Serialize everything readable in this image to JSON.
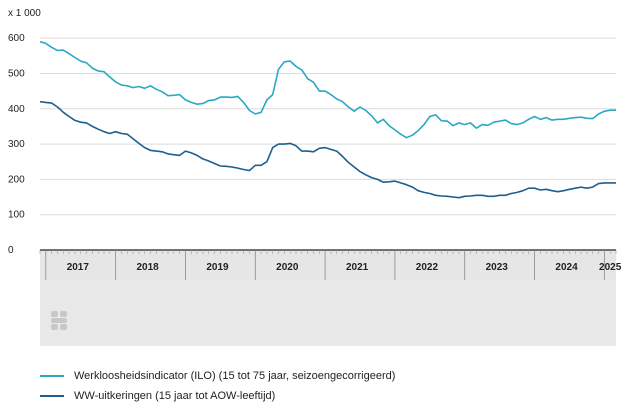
{
  "chart_data": {
    "type": "line",
    "unit_label": "x 1 000",
    "y_ticks": [
      0,
      100,
      200,
      300,
      400,
      500,
      600
    ],
    "ylim": [
      0,
      640
    ],
    "x_years": [
      "2017",
      "2018",
      "2019",
      "2020",
      "2021",
      "2022",
      "2023",
      "2024",
      "2025"
    ],
    "x_start": "2016-12",
    "x_end": "2025-03",
    "grid": "horizontal",
    "legend_position": "bottom",
    "series": [
      {
        "name": "Werkloosheidsindicator (ILO) (15 tot 75 jaar, seizoengecorrigeerd)",
        "color": "#2aa8c4",
        "points": [
          [
            "2016-12",
            590
          ],
          [
            "2017-01",
            585
          ],
          [
            "2017-02",
            574
          ],
          [
            "2017-03",
            565
          ],
          [
            "2017-04",
            566
          ],
          [
            "2017-05",
            556
          ],
          [
            "2017-06",
            545
          ],
          [
            "2017-07",
            535
          ],
          [
            "2017-08",
            530
          ],
          [
            "2017-09",
            515
          ],
          [
            "2017-10",
            507
          ],
          [
            "2017-11",
            505
          ],
          [
            "2017-12",
            490
          ],
          [
            "2018-01",
            476
          ],
          [
            "2018-02",
            467
          ],
          [
            "2018-03",
            465
          ],
          [
            "2018-04",
            460
          ],
          [
            "2018-05",
            463
          ],
          [
            "2018-06",
            458
          ],
          [
            "2018-07",
            465
          ],
          [
            "2018-08",
            455
          ],
          [
            "2018-09",
            448
          ],
          [
            "2018-10",
            437
          ],
          [
            "2018-11",
            438
          ],
          [
            "2018-12",
            440
          ],
          [
            "2019-01",
            425
          ],
          [
            "2019-02",
            418
          ],
          [
            "2019-03",
            413
          ],
          [
            "2019-04",
            415
          ],
          [
            "2019-05",
            423
          ],
          [
            "2019-06",
            425
          ],
          [
            "2019-07",
            433
          ],
          [
            "2019-08",
            433
          ],
          [
            "2019-09",
            432
          ],
          [
            "2019-10",
            435
          ],
          [
            "2019-11",
            418
          ],
          [
            "2019-12",
            395
          ],
          [
            "2020-01",
            385
          ],
          [
            "2020-02",
            390
          ],
          [
            "2020-03",
            425
          ],
          [
            "2020-04",
            440
          ],
          [
            "2020-05",
            512
          ],
          [
            "2020-06",
            533
          ],
          [
            "2020-07",
            535
          ],
          [
            "2020-08",
            520
          ],
          [
            "2020-09",
            510
          ],
          [
            "2020-10",
            485
          ],
          [
            "2020-11",
            475
          ],
          [
            "2020-12",
            450
          ],
          [
            "2021-01",
            450
          ],
          [
            "2021-02",
            440
          ],
          [
            "2021-03",
            428
          ],
          [
            "2021-04",
            420
          ],
          [
            "2021-05",
            405
          ],
          [
            "2021-06",
            393
          ],
          [
            "2021-07",
            405
          ],
          [
            "2021-08",
            395
          ],
          [
            "2021-09",
            380
          ],
          [
            "2021-10",
            360
          ],
          [
            "2021-11",
            370
          ],
          [
            "2021-12",
            352
          ],
          [
            "2022-01",
            340
          ],
          [
            "2022-02",
            328
          ],
          [
            "2022-03",
            318
          ],
          [
            "2022-04",
            325
          ],
          [
            "2022-05",
            338
          ],
          [
            "2022-06",
            355
          ],
          [
            "2022-07",
            378
          ],
          [
            "2022-08",
            383
          ],
          [
            "2022-09",
            366
          ],
          [
            "2022-10",
            365
          ],
          [
            "2022-11",
            352
          ],
          [
            "2022-12",
            360
          ],
          [
            "2023-01",
            355
          ],
          [
            "2023-02",
            360
          ],
          [
            "2023-03",
            345
          ],
          [
            "2023-04",
            355
          ],
          [
            "2023-05",
            353
          ],
          [
            "2023-06",
            362
          ],
          [
            "2023-07",
            365
          ],
          [
            "2023-08",
            368
          ],
          [
            "2023-09",
            358
          ],
          [
            "2023-10",
            355
          ],
          [
            "2023-11",
            360
          ],
          [
            "2023-12",
            370
          ],
          [
            "2024-01",
            378
          ],
          [
            "2024-02",
            370
          ],
          [
            "2024-03",
            375
          ],
          [
            "2024-04",
            368
          ],
          [
            "2024-05",
            370
          ],
          [
            "2024-06",
            370
          ],
          [
            "2024-07",
            373
          ],
          [
            "2024-08",
            375
          ],
          [
            "2024-09",
            376
          ],
          [
            "2024-10",
            373
          ],
          [
            "2024-11",
            372
          ],
          [
            "2024-12",
            385
          ],
          [
            "2025-01",
            393
          ],
          [
            "2025-02",
            396
          ],
          [
            "2025-03",
            396
          ]
        ]
      },
      {
        "name": "WW-uitkeringen (15 jaar tot AOW-leeftijd)",
        "color": "#1d5f91",
        "points": [
          [
            "2016-12",
            420
          ],
          [
            "2017-01",
            418
          ],
          [
            "2017-02",
            416
          ],
          [
            "2017-03",
            405
          ],
          [
            "2017-04",
            390
          ],
          [
            "2017-05",
            378
          ],
          [
            "2017-06",
            367
          ],
          [
            "2017-07",
            362
          ],
          [
            "2017-08",
            360
          ],
          [
            "2017-09",
            350
          ],
          [
            "2017-10",
            342
          ],
          [
            "2017-11",
            335
          ],
          [
            "2017-12",
            330
          ],
          [
            "2018-01",
            335
          ],
          [
            "2018-02",
            330
          ],
          [
            "2018-03",
            328
          ],
          [
            "2018-04",
            315
          ],
          [
            "2018-05",
            302
          ],
          [
            "2018-06",
            290
          ],
          [
            "2018-07",
            282
          ],
          [
            "2018-08",
            280
          ],
          [
            "2018-09",
            278
          ],
          [
            "2018-10",
            272
          ],
          [
            "2018-11",
            270
          ],
          [
            "2018-12",
            268
          ],
          [
            "2019-01",
            280
          ],
          [
            "2019-02",
            275
          ],
          [
            "2019-03",
            268
          ],
          [
            "2019-04",
            258
          ],
          [
            "2019-05",
            252
          ],
          [
            "2019-06",
            245
          ],
          [
            "2019-07",
            238
          ],
          [
            "2019-08",
            237
          ],
          [
            "2019-09",
            235
          ],
          [
            "2019-10",
            232
          ],
          [
            "2019-11",
            228
          ],
          [
            "2019-12",
            225
          ],
          [
            "2020-01",
            240
          ],
          [
            "2020-02",
            240
          ],
          [
            "2020-03",
            250
          ],
          [
            "2020-04",
            290
          ],
          [
            "2020-05",
            300
          ],
          [
            "2020-06",
            300
          ],
          [
            "2020-07",
            302
          ],
          [
            "2020-08",
            295
          ],
          [
            "2020-09",
            280
          ],
          [
            "2020-10",
            280
          ],
          [
            "2020-11",
            278
          ],
          [
            "2020-12",
            288
          ],
          [
            "2021-01",
            290
          ],
          [
            "2021-02",
            285
          ],
          [
            "2021-03",
            280
          ],
          [
            "2021-04",
            265
          ],
          [
            "2021-05",
            248
          ],
          [
            "2021-06",
            235
          ],
          [
            "2021-07",
            222
          ],
          [
            "2021-08",
            213
          ],
          [
            "2021-09",
            205
          ],
          [
            "2021-10",
            200
          ],
          [
            "2021-11",
            192
          ],
          [
            "2021-12",
            193
          ],
          [
            "2022-01",
            195
          ],
          [
            "2022-02",
            190
          ],
          [
            "2022-03",
            185
          ],
          [
            "2022-04",
            178
          ],
          [
            "2022-05",
            168
          ],
          [
            "2022-06",
            163
          ],
          [
            "2022-07",
            160
          ],
          [
            "2022-08",
            155
          ],
          [
            "2022-09",
            153
          ],
          [
            "2022-10",
            152
          ],
          [
            "2022-11",
            150
          ],
          [
            "2022-12",
            148
          ],
          [
            "2023-01",
            152
          ],
          [
            "2023-02",
            153
          ],
          [
            "2023-03",
            155
          ],
          [
            "2023-04",
            155
          ],
          [
            "2023-05",
            152
          ],
          [
            "2023-06",
            152
          ],
          [
            "2023-07",
            155
          ],
          [
            "2023-08",
            155
          ],
          [
            "2023-09",
            160
          ],
          [
            "2023-10",
            163
          ],
          [
            "2023-11",
            168
          ],
          [
            "2023-12",
            175
          ],
          [
            "2024-01",
            175
          ],
          [
            "2024-02",
            170
          ],
          [
            "2024-03",
            172
          ],
          [
            "2024-04",
            168
          ],
          [
            "2024-05",
            165
          ],
          [
            "2024-06",
            168
          ],
          [
            "2024-07",
            172
          ],
          [
            "2024-08",
            175
          ],
          [
            "2024-09",
            178
          ],
          [
            "2024-10",
            175
          ],
          [
            "2024-11",
            178
          ],
          [
            "2024-12",
            188
          ],
          [
            "2025-01",
            190
          ],
          [
            "2025-02",
            190
          ],
          [
            "2025-03",
            190
          ]
        ]
      }
    ]
  },
  "colors": {
    "grid": "#dcdcdc",
    "axis": "#222222",
    "band": "#e6e6e6",
    "logo": "#c8c8c8"
  },
  "logo_icon": "cbs-logo-icon"
}
